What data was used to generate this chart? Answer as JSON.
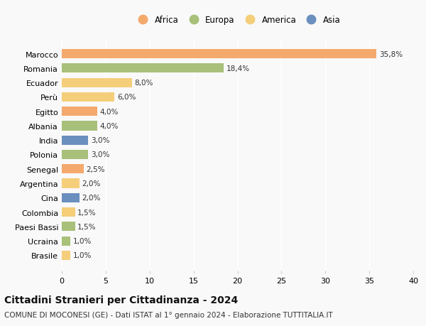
{
  "categories": [
    "Marocco",
    "Romania",
    "Ecuador",
    "Perù",
    "Egitto",
    "Albania",
    "India",
    "Polonia",
    "Senegal",
    "Argentina",
    "Cina",
    "Colombia",
    "Paesi Bassi",
    "Ucraina",
    "Brasile"
  ],
  "values": [
    35.8,
    18.4,
    8.0,
    6.0,
    4.0,
    4.0,
    3.0,
    3.0,
    2.5,
    2.0,
    2.0,
    1.5,
    1.5,
    1.0,
    1.0
  ],
  "labels": [
    "35,8%",
    "18,4%",
    "8,0%",
    "6,0%",
    "4,0%",
    "4,0%",
    "3,0%",
    "3,0%",
    "2,5%",
    "2,0%",
    "2,0%",
    "1,5%",
    "1,5%",
    "1,0%",
    "1,0%"
  ],
  "colors": [
    "#F4A96D",
    "#A8C07A",
    "#F5CE7A",
    "#F5CE7A",
    "#F4A96D",
    "#A8C07A",
    "#6B8FBE",
    "#A8C07A",
    "#F4A96D",
    "#F5CE7A",
    "#6B8FBE",
    "#F5CE7A",
    "#A8C07A",
    "#A8C07A",
    "#F5CE7A"
  ],
  "continent_colors": {
    "Africa": "#F4A96D",
    "Europa": "#A8C07A",
    "America": "#F5CE7A",
    "Asia": "#6B8FBE"
  },
  "legend_labels": [
    "Africa",
    "Europa",
    "America",
    "Asia"
  ],
  "xlim": [
    0,
    40
  ],
  "xticks": [
    0,
    5,
    10,
    15,
    20,
    25,
    30,
    35,
    40
  ],
  "title": "Cittadini Stranieri per Cittadinanza - 2024",
  "subtitle": "COMUNE DI MOCONESI (GE) - Dati ISTAT al 1° gennaio 2024 - Elaborazione TUTTITALIA.IT",
  "background_color": "#f9f9f9",
  "bar_height": 0.65,
  "label_fontsize": 7.5,
  "title_fontsize": 10,
  "subtitle_fontsize": 7.5,
  "ytick_fontsize": 8,
  "xtick_fontsize": 8
}
